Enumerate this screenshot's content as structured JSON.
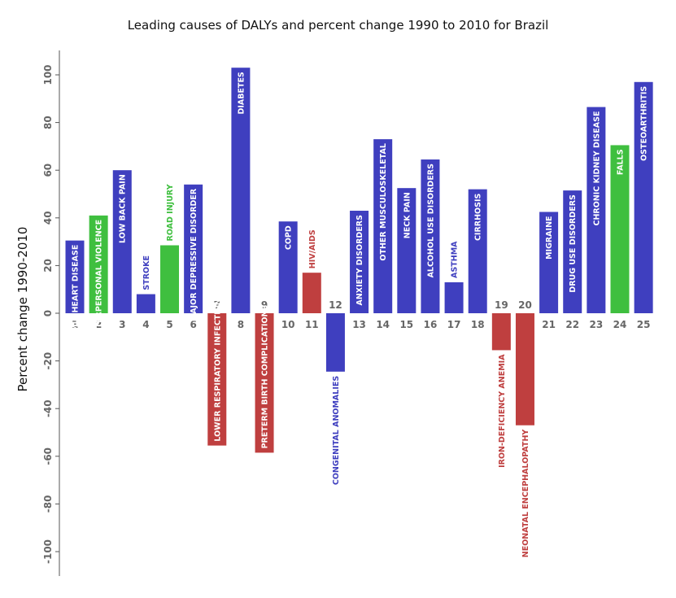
{
  "chart_data": {
    "type": "bar",
    "title": "Leading causes of DALYs and percent change 1990 to 2010 for Brazil",
    "ylabel": "Percent change 1990-2010",
    "ylim": [
      -110,
      110
    ],
    "yticks": [
      100,
      80,
      60,
      40,
      20,
      0,
      -20,
      -40,
      -60,
      -80,
      -100
    ],
    "categories": [
      "1",
      "2",
      "3",
      "4",
      "5",
      "6",
      "7",
      "8",
      "9",
      "10",
      "11",
      "12",
      "13",
      "14",
      "15",
      "16",
      "17",
      "18",
      "19",
      "20",
      "21",
      "22",
      "23",
      "24",
      "25"
    ],
    "values": [
      30.5,
      41,
      60,
      8,
      28.5,
      54,
      -55.5,
      103,
      -58.5,
      38.5,
      17,
      -24.5,
      43,
      73,
      52.5,
      64.5,
      13,
      52,
      -15.5,
      -47,
      42.5,
      51.5,
      86.5,
      70.5,
      97
    ],
    "labels": [
      "ISCHEMIC HEART DISEASE",
      "INTERPERSONAL VIOLENCE",
      "LOW BACK PAIN",
      "STROKE",
      "ROAD INJURY",
      "MAJOR DEPRESSIVE DISORDER",
      "LOWER RESPIRATORY INFECTIONS",
      "DIABETES",
      "PRETERM BIRTH COMPLICATIONS",
      "COPD",
      "HIV/AIDS",
      "CONGENITAL ANOMALIES",
      "ANXIETY DISORDERS",
      "OTHER MUSCULOSKELETAL",
      "NECK PAIN",
      "ALCOHOL USE DISORDERS",
      "ASTHMA",
      "CIRRHOSIS",
      "IRON-DEFICIENCY ANEMIA",
      "NEONATAL ENCEPHALOPATHY",
      "MIGRAINE",
      "DRUG USE DISORDERS",
      "CHRONIC KIDNEY DISEASE",
      "FALLS",
      "OSTEOARTHRITIS"
    ],
    "colors": [
      "blue",
      "green",
      "blue",
      "blue",
      "green",
      "blue",
      "red",
      "blue",
      "red",
      "blue",
      "red",
      "blue",
      "blue",
      "blue",
      "blue",
      "blue",
      "blue",
      "blue",
      "red",
      "red",
      "blue",
      "blue",
      "blue",
      "green",
      "blue"
    ],
    "palette": {
      "blue": "#3f3fbf",
      "green": "#3fbf3f",
      "red": "#bf3f3f"
    },
    "grid": false
  }
}
